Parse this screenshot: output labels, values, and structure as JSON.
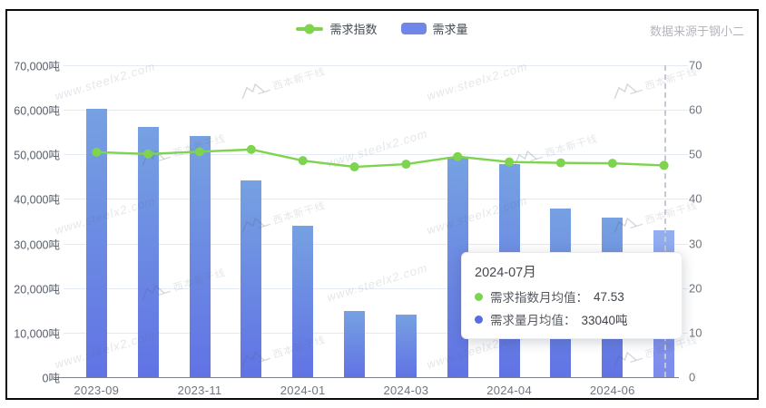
{
  "source_note": "数据来源于钢小二",
  "legend": [
    {
      "label": "需求指数",
      "type": "line",
      "color": "#7ed34f"
    },
    {
      "label": "需求量",
      "type": "bar",
      "color": "#7285e8"
    }
  ],
  "tooltip": {
    "title": "2024-07月",
    "rows": [
      {
        "dot_color": "#7ed34f",
        "label": "需求指数月均值：",
        "value": "47.53"
      },
      {
        "dot_color": "#5b6ce1",
        "label": "需求量月均值：",
        "value": "33040吨"
      }
    ]
  },
  "watermark": {
    "text": "www.steelx2.com",
    "logo_text": "西本新干线"
  },
  "colors": {
    "bar_top": "#76a1e2",
    "bar_bottom": "#6173e4",
    "bar_highlight_top": "#93aef0",
    "bar_highlight_bottom": "#7d8bec",
    "line": "#7ed34f",
    "gridline": "#e4eaf4",
    "axis_line": "#7e838b"
  },
  "chart_data": {
    "type": "bar+line",
    "x_tick_labels": [
      "2023-09",
      "2023-11",
      "2024-01",
      "2024-03",
      "2024-04",
      "2024-06"
    ],
    "x_tick_bar_indices": [
      0,
      2,
      4,
      6,
      8,
      10
    ],
    "hovered_category": "2024-07月",
    "hovered_index": 11,
    "series": [
      {
        "name": "需求量",
        "type": "bar",
        "axis": "left",
        "unit": "吨",
        "values": [
          60200,
          56200,
          54100,
          44200,
          34000,
          14900,
          14000,
          49400,
          47800,
          37900,
          35800,
          33040
        ]
      },
      {
        "name": "需求指数",
        "type": "line",
        "axis": "right",
        "values": [
          50.5,
          50.1,
          50.6,
          51.1,
          48.6,
          47.2,
          47.8,
          49.5,
          48.3,
          48.1,
          48.0,
          47.53
        ]
      }
    ],
    "left_axis": {
      "labels": [
        "0吨",
        "10,000吨",
        "20,000吨",
        "30,000吨",
        "40,000吨",
        "50,000吨",
        "60,000吨",
        "70,000吨"
      ],
      "min": 0,
      "max": 70000
    },
    "right_axis": {
      "labels": [
        "0",
        "10",
        "20",
        "30",
        "40",
        "50",
        "60",
        "70"
      ],
      "min": 0,
      "max": 70
    },
    "grid": true,
    "legend_position": "top-center"
  }
}
